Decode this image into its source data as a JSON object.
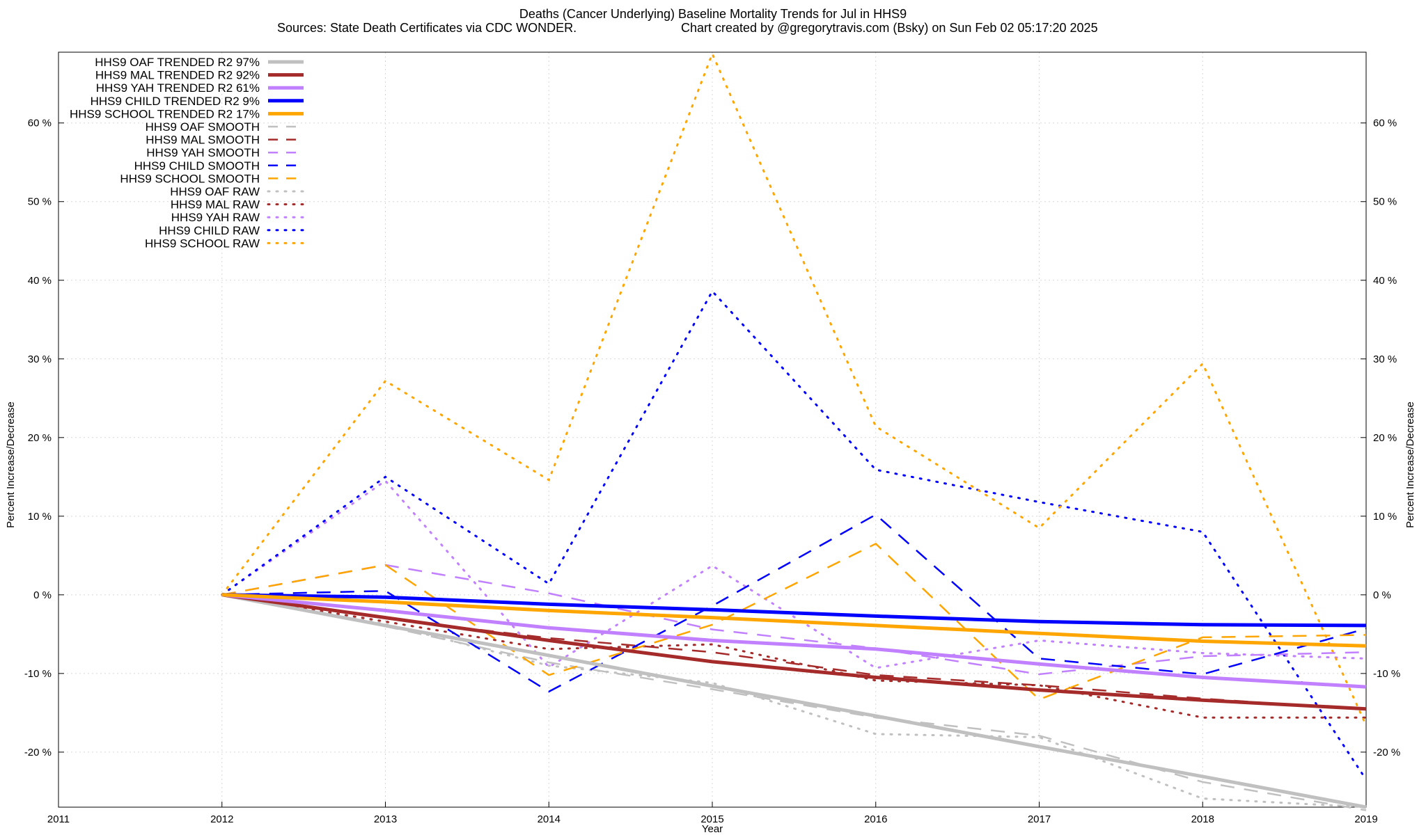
{
  "chart_data": {
    "type": "line",
    "title": "Deaths (Cancer Underlying)  Baseline Mortality Trends for Jul in HHS9",
    "subtitle_left": "Sources: State Death Certificates via CDC WONDER.",
    "subtitle_right": "Chart created by @gregorytravis.com (Bsky) on Sun Feb 02 05:17:20 2025",
    "xlabel": "Year",
    "ylabel": "Percent Increase/Decrease",
    "y2label": "Percent Increase/Decrease",
    "xlim": [
      2011,
      2019
    ],
    "ylim": [
      -27,
      69
    ],
    "x_ticks": [
      "2011",
      "2012",
      "2013",
      "2014",
      "2015",
      "2016",
      "2017",
      "2018",
      "2019"
    ],
    "y_ticks": [
      -20,
      -10,
      0,
      10,
      20,
      30,
      40,
      50,
      60
    ],
    "y_tick_labels": [
      "-20 %",
      "-10 %",
      "0 %",
      "10 %",
      "20 %",
      "30 %",
      "40 %",
      "50 %",
      "60 %"
    ],
    "grid": true,
    "legend_position": "top-left",
    "x": [
      2012,
      2013,
      2014,
      2015,
      2016,
      2017,
      2018,
      2019
    ],
    "series": [
      {
        "name": "HHS9 OAF TRENDED R2  97%",
        "style": "solid",
        "color": "#c0c0c0",
        "values": [
          0,
          -3.9,
          -7.7,
          -11.6,
          -15.4,
          -19.3,
          -23.1,
          -27.0
        ]
      },
      {
        "name": "HHS9 MAL TRENDED R2  92%",
        "style": "solid",
        "color": "#a52a2a",
        "values": [
          0,
          -2.9,
          -5.8,
          -8.5,
          -10.5,
          -12.1,
          -13.4,
          -14.5
        ]
      },
      {
        "name": "HHS9 YAH TRENDED R2  61%",
        "style": "solid",
        "color": "#c080ff",
        "values": [
          0,
          -2.0,
          -4.2,
          -5.8,
          -6.9,
          -8.8,
          -10.5,
          -11.7
        ]
      },
      {
        "name": "HHS9 CHILD TRENDED R2   9%",
        "style": "solid",
        "color": "#0000ff",
        "values": [
          0,
          -0.3,
          -1.2,
          -1.9,
          -2.7,
          -3.4,
          -3.8,
          -3.9
        ]
      },
      {
        "name": "HHS9 SCHOOL TRENDED R2  17%",
        "style": "solid",
        "color": "#ffa500",
        "values": [
          0,
          -0.9,
          -2.0,
          -2.9,
          -3.9,
          -4.9,
          -5.9,
          -6.5
        ]
      },
      {
        "name": "HHS9 OAF SMOOTH",
        "style": "dashed",
        "color": "#c0c0c0",
        "values": [
          0,
          -4.0,
          -8.6,
          -12.0,
          -15.6,
          -17.9,
          -23.8,
          -27.4
        ]
      },
      {
        "name": "HHS9 MAL SMOOTH",
        "style": "dashed",
        "color": "#a52a2a",
        "values": [
          0,
          -3.0,
          -5.5,
          -7.3,
          -10.2,
          -11.5,
          -13.2,
          -14.6
        ]
      },
      {
        "name": "HHS9 YAH SMOOTH",
        "style": "dashed",
        "color": "#c080ff",
        "values": [
          0,
          3.8,
          0.2,
          -4.4,
          -6.8,
          -10.1,
          -7.8,
          -7.3
        ]
      },
      {
        "name": "HHS9 CHILD SMOOTH",
        "style": "dashed",
        "color": "#0000ff",
        "values": [
          0,
          0.5,
          -12.3,
          -1.4,
          10.2,
          -8.1,
          -10.1,
          -4.3
        ]
      },
      {
        "name": "HHS9 SCHOOL SMOOTH",
        "style": "dashed",
        "color": "#ffa500",
        "values": [
          0,
          3.8,
          -10.2,
          -3.8,
          6.5,
          -13.3,
          -5.4,
          -5.1
        ]
      },
      {
        "name": "HHS9 OAF RAW",
        "style": "dotted",
        "color": "#c0c0c0",
        "values": [
          0,
          -3.7,
          -9.0,
          -11.2,
          -17.7,
          -18.1,
          -25.9,
          -27.0
        ]
      },
      {
        "name": "HHS9 MAL RAW",
        "style": "dotted",
        "color": "#a52a2a",
        "values": [
          0,
          -3.4,
          -6.9,
          -6.3,
          -10.9,
          -11.5,
          -15.6,
          -15.6
        ]
      },
      {
        "name": "HHS9 YAH RAW",
        "style": "dotted",
        "color": "#c080ff",
        "values": [
          0,
          14.5,
          -9.2,
          3.7,
          -9.3,
          -5.8,
          -7.4,
          -8.1
        ]
      },
      {
        "name": "HHS9 CHILD RAW",
        "style": "dotted",
        "color": "#0000ff",
        "values": [
          0,
          15.0,
          1.4,
          38.6,
          15.9,
          11.8,
          8.0,
          -23.5
        ]
      },
      {
        "name": "HHS9 SCHOOL RAW",
        "style": "dotted",
        "color": "#ffa500",
        "values": [
          0,
          27.2,
          14.6,
          68.8,
          21.4,
          8.5,
          29.4,
          -16.6
        ]
      }
    ]
  }
}
